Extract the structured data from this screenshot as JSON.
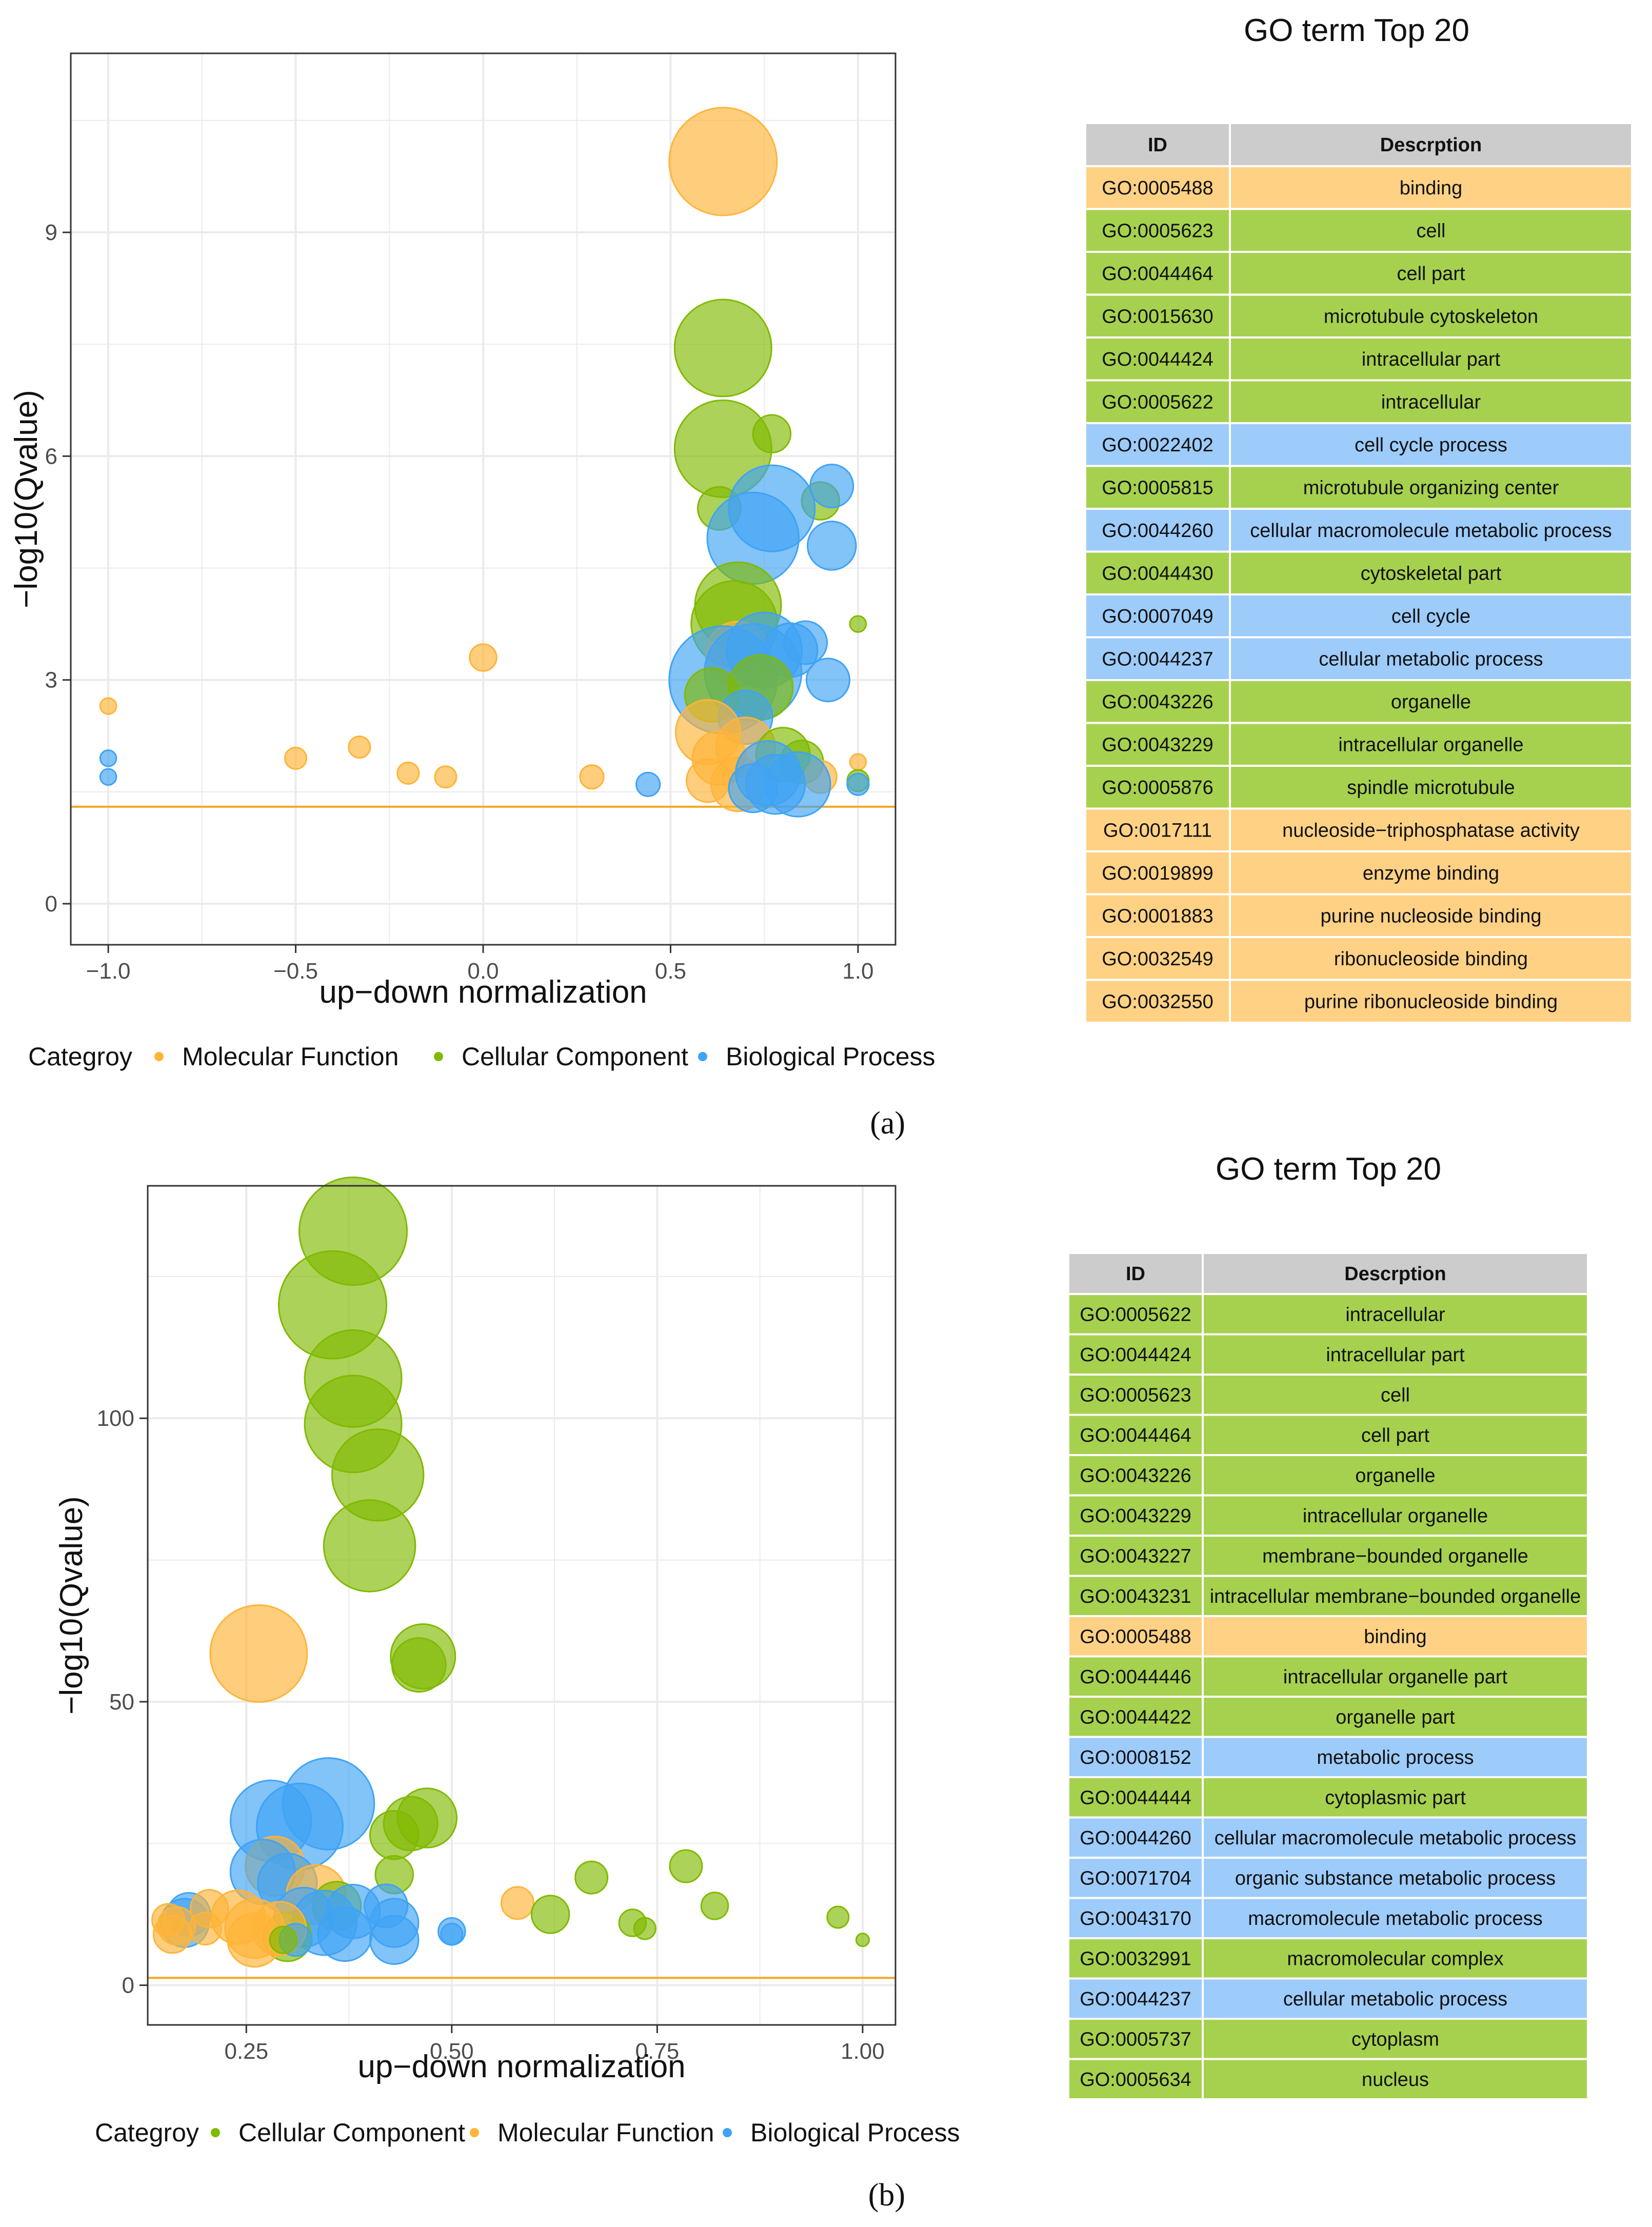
{
  "colors": {
    "Molecular Function": "#FFB438",
    "Cellular Component": "#80BA00",
    "Biological Process": "#3FA3F5",
    "threshold": "#F5A623",
    "grid": "#ebebeb",
    "header_bg": "#CCCCCC",
    "row_Molecular Function": "#FFD185",
    "row_Cellular Component": "#A6D14E",
    "row_Biological Process": "#9DCBFA"
  },
  "chart_data": [
    {
      "panel_label": "(a)",
      "type": "scatter",
      "xlabel": "up−down normalization",
      "ylabel": "−log10(Qvalue)",
      "xlim": [
        -1.1,
        1.1
      ],
      "ylim": [
        -0.55,
        11.4
      ],
      "xticks": [
        -1.0,
        -0.5,
        0.0,
        0.5,
        1.0
      ],
      "xtick_labels": [
        "−1.0",
        "−0.5",
        "0.0",
        "0.5",
        "1.0"
      ],
      "yticks": [
        0,
        3,
        6,
        9
      ],
      "ytick_labels": [
        "0",
        "3",
        "6",
        "9"
      ],
      "threshold": 1.3,
      "legend_title": "Categroy",
      "legend": [
        "Molecular Function",
        "Cellular Component",
        "Biological Process"
      ],
      "points": [
        {
          "x": 0.64,
          "y": 9.95,
          "s": 1.0,
          "c": "Molecular Function"
        },
        {
          "x": 0.64,
          "y": 7.45,
          "s": 0.9,
          "c": "Cellular Component"
        },
        {
          "x": 0.64,
          "y": 6.1,
          "s": 0.9,
          "c": "Cellular Component"
        },
        {
          "x": 0.77,
          "y": 6.3,
          "s": 0.35,
          "c": "Cellular Component"
        },
        {
          "x": 0.63,
          "y": 5.3,
          "s": 0.4,
          "c": "Cellular Component"
        },
        {
          "x": 0.9,
          "y": 5.4,
          "s": 0.35,
          "c": "Cellular Component"
        },
        {
          "x": 0.93,
          "y": 5.6,
          "s": 0.4,
          "c": "Biological Process"
        },
        {
          "x": 0.77,
          "y": 5.3,
          "s": 0.8,
          "c": "Biological Process"
        },
        {
          "x": 0.72,
          "y": 4.9,
          "s": 0.85,
          "c": "Biological Process"
        },
        {
          "x": 0.93,
          "y": 4.8,
          "s": 0.45,
          "c": "Biological Process"
        },
        {
          "x": 0.68,
          "y": 4.0,
          "s": 0.8,
          "c": "Cellular Component"
        },
        {
          "x": 0.67,
          "y": 3.75,
          "s": 0.8,
          "c": "Cellular Component"
        },
        {
          "x": 1.0,
          "y": 3.75,
          "s": 0.15,
          "c": "Cellular Component"
        },
        {
          "x": 0.0,
          "y": 3.3,
          "s": 0.25,
          "c": "Molecular Function"
        },
        {
          "x": 0.68,
          "y": 3.35,
          "s": 0.6,
          "c": "Molecular Function"
        },
        {
          "x": 0.75,
          "y": 3.4,
          "s": 0.7,
          "c": "Biological Process"
        },
        {
          "x": 0.82,
          "y": 3.4,
          "s": 0.5,
          "c": "Biological Process"
        },
        {
          "x": 0.86,
          "y": 3.5,
          "s": 0.4,
          "c": "Biological Process"
        },
        {
          "x": 0.72,
          "y": 3.1,
          "s": 0.9,
          "c": "Biological Process"
        },
        {
          "x": 0.64,
          "y": 3.0,
          "s": 1.0,
          "c": "Biological Process"
        },
        {
          "x": 0.92,
          "y": 3.0,
          "s": 0.4,
          "c": "Biological Process"
        },
        {
          "x": 0.61,
          "y": 2.8,
          "s": 0.5,
          "c": "Cellular Component"
        },
        {
          "x": 0.74,
          "y": 2.9,
          "s": 0.6,
          "c": "Cellular Component"
        },
        {
          "x": 0.7,
          "y": 2.5,
          "s": 0.5,
          "c": "Biological Process"
        },
        {
          "x": 0.6,
          "y": 2.3,
          "s": 0.6,
          "c": "Molecular Function"
        },
        {
          "x": 0.7,
          "y": 2.1,
          "s": 0.55,
          "c": "Molecular Function"
        },
        {
          "x": 0.63,
          "y": 1.95,
          "s": 0.5,
          "c": "Molecular Function"
        },
        {
          "x": 0.8,
          "y": 2.0,
          "s": 0.5,
          "c": "Cellular Component"
        },
        {
          "x": 0.85,
          "y": 1.9,
          "s": 0.4,
          "c": "Cellular Component"
        },
        {
          "x": 0.6,
          "y": 1.65,
          "s": 0.4,
          "c": "Molecular Function"
        },
        {
          "x": 0.68,
          "y": 1.6,
          "s": 0.5,
          "c": "Molecular Function"
        },
        {
          "x": 0.9,
          "y": 1.7,
          "s": 0.3,
          "c": "Molecular Function"
        },
        {
          "x": 1.0,
          "y": 1.9,
          "s": 0.15,
          "c": "Molecular Function"
        },
        {
          "x": 1.0,
          "y": 1.65,
          "s": 0.2,
          "c": "Cellular Component"
        },
        {
          "x": 0.76,
          "y": 1.75,
          "s": 0.6,
          "c": "Biological Process"
        },
        {
          "x": 0.84,
          "y": 1.6,
          "s": 0.6,
          "c": "Biological Process"
        },
        {
          "x": 0.72,
          "y": 1.55,
          "s": 0.45,
          "c": "Biological Process"
        },
        {
          "x": 0.78,
          "y": 1.6,
          "s": 0.55,
          "c": "Biological Process"
        },
        {
          "x": 1.0,
          "y": 1.6,
          "s": 0.2,
          "c": "Biological Process"
        },
        {
          "x": 0.44,
          "y": 1.6,
          "s": 0.22,
          "c": "Biological Process"
        },
        {
          "x": 0.29,
          "y": 1.7,
          "s": 0.22,
          "c": "Molecular Function"
        },
        {
          "x": -0.1,
          "y": 1.7,
          "s": 0.2,
          "c": "Molecular Function"
        },
        {
          "x": -0.2,
          "y": 1.75,
          "s": 0.2,
          "c": "Molecular Function"
        },
        {
          "x": -0.33,
          "y": 2.1,
          "s": 0.2,
          "c": "Molecular Function"
        },
        {
          "x": -0.5,
          "y": 1.95,
          "s": 0.2,
          "c": "Molecular Function"
        },
        {
          "x": -1.0,
          "y": 2.65,
          "s": 0.15,
          "c": "Molecular Function"
        },
        {
          "x": -1.0,
          "y": 1.95,
          "s": 0.15,
          "c": "Biological Process"
        },
        {
          "x": -1.0,
          "y": 1.7,
          "s": 0.15,
          "c": "Biological Process"
        }
      ]
    },
    {
      "panel_label": "(b)",
      "type": "scatter",
      "xlabel": "up−down normalization",
      "ylabel": "−log10(Qvalue)",
      "xlim": [
        0.13,
        1.04
      ],
      "ylim": [
        -7,
        141
      ],
      "xticks": [
        0.25,
        0.5,
        0.75,
        1.0
      ],
      "xtick_labels": [
        "0.25",
        "0.50",
        "0.75",
        "1.00"
      ],
      "yticks": [
        0,
        50,
        100
      ],
      "ytick_labels": [
        "0",
        "50",
        "100"
      ],
      "threshold": 1.3,
      "legend_title": "Categroy",
      "legend": [
        "Cellular Component",
        "Molecular Function",
        "Biological Process"
      ],
      "points": [
        {
          "x": 0.38,
          "y": 133,
          "s": 1.0,
          "c": "Cellular Component"
        },
        {
          "x": 0.355,
          "y": 120,
          "s": 1.0,
          "c": "Cellular Component"
        },
        {
          "x": 0.38,
          "y": 107,
          "s": 0.9,
          "c": "Cellular Component"
        },
        {
          "x": 0.38,
          "y": 99,
          "s": 0.9,
          "c": "Cellular Component"
        },
        {
          "x": 0.41,
          "y": 90,
          "s": 0.85,
          "c": "Cellular Component"
        },
        {
          "x": 0.4,
          "y": 77.5,
          "s": 0.85,
          "c": "Cellular Component"
        },
        {
          "x": 0.265,
          "y": 58.5,
          "s": 0.9,
          "c": "Molecular Function"
        },
        {
          "x": 0.465,
          "y": 58,
          "s": 0.6,
          "c": "Cellular Component"
        },
        {
          "x": 0.46,
          "y": 56.5,
          "s": 0.5,
          "c": "Cellular Component"
        },
        {
          "x": 0.35,
          "y": 32,
          "s": 0.85,
          "c": "Biological Process"
        },
        {
          "x": 0.28,
          "y": 29,
          "s": 0.75,
          "c": "Biological Process"
        },
        {
          "x": 0.315,
          "y": 28,
          "s": 0.8,
          "c": "Biological Process"
        },
        {
          "x": 0.47,
          "y": 29.5,
          "s": 0.55,
          "c": "Cellular Component"
        },
        {
          "x": 0.45,
          "y": 28.5,
          "s": 0.5,
          "c": "Cellular Component"
        },
        {
          "x": 0.43,
          "y": 26.5,
          "s": 0.45,
          "c": "Cellular Component"
        },
        {
          "x": 0.285,
          "y": 21,
          "s": 0.55,
          "c": "Molecular Function"
        },
        {
          "x": 0.27,
          "y": 20,
          "s": 0.6,
          "c": "Biological Process"
        },
        {
          "x": 0.3,
          "y": 18,
          "s": 0.55,
          "c": "Biological Process"
        },
        {
          "x": 0.43,
          "y": 19.5,
          "s": 0.35,
          "c": "Cellular Component"
        },
        {
          "x": 0.67,
          "y": 19,
          "s": 0.3,
          "c": "Cellular Component"
        },
        {
          "x": 0.785,
          "y": 21,
          "s": 0.3,
          "c": "Cellular Component"
        },
        {
          "x": 0.58,
          "y": 14.5,
          "s": 0.3,
          "c": "Molecular Function"
        },
        {
          "x": 0.82,
          "y": 14,
          "s": 0.25,
          "c": "Cellular Component"
        },
        {
          "x": 0.62,
          "y": 12.5,
          "s": 0.35,
          "c": "Cellular Component"
        },
        {
          "x": 0.72,
          "y": 11,
          "s": 0.25,
          "c": "Cellular Component"
        },
        {
          "x": 0.735,
          "y": 10,
          "s": 0.2,
          "c": "Cellular Component"
        },
        {
          "x": 0.97,
          "y": 12,
          "s": 0.2,
          "c": "Cellular Component"
        },
        {
          "x": 1.0,
          "y": 8,
          "s": 0.12,
          "c": "Cellular Component"
        },
        {
          "x": 0.5,
          "y": 9.5,
          "s": 0.25,
          "c": "Biological Process"
        },
        {
          "x": 0.5,
          "y": 9,
          "s": 0.2,
          "c": "Biological Process"
        },
        {
          "x": 0.335,
          "y": 16,
          "s": 0.55,
          "c": "Molecular Function"
        },
        {
          "x": 0.36,
          "y": 14,
          "s": 0.45,
          "c": "Cellular Component"
        },
        {
          "x": 0.38,
          "y": 13,
          "s": 0.5,
          "c": "Biological Process"
        },
        {
          "x": 0.32,
          "y": 12,
          "s": 0.55,
          "c": "Biological Process"
        },
        {
          "x": 0.345,
          "y": 11,
          "s": 0.6,
          "c": "Biological Process"
        },
        {
          "x": 0.42,
          "y": 14,
          "s": 0.4,
          "c": "Biological Process"
        },
        {
          "x": 0.43,
          "y": 11,
          "s": 0.45,
          "c": "Biological Process"
        },
        {
          "x": 0.43,
          "y": 8,
          "s": 0.45,
          "c": "Biological Process"
        },
        {
          "x": 0.37,
          "y": 9,
          "s": 0.5,
          "c": "Biological Process"
        },
        {
          "x": 0.3,
          "y": 8.5,
          "s": 0.45,
          "c": "Cellular Component"
        },
        {
          "x": 0.26,
          "y": 8,
          "s": 0.5,
          "c": "Molecular Function"
        },
        {
          "x": 0.26,
          "y": 10,
          "s": 0.55,
          "c": "Molecular Function"
        },
        {
          "x": 0.24,
          "y": 12,
          "s": 0.5,
          "c": "Molecular Function"
        },
        {
          "x": 0.29,
          "y": 10,
          "s": 0.5,
          "c": "Molecular Function"
        },
        {
          "x": 0.18,
          "y": 12.5,
          "s": 0.4,
          "c": "Biological Process"
        },
        {
          "x": 0.175,
          "y": 11,
          "s": 0.45,
          "c": "Biological Process"
        },
        {
          "x": 0.205,
          "y": 13.5,
          "s": 0.35,
          "c": "Molecular Function"
        },
        {
          "x": 0.2,
          "y": 10,
          "s": 0.3,
          "c": "Molecular Function"
        },
        {
          "x": 0.165,
          "y": 10.5,
          "s": 0.35,
          "c": "Molecular Function"
        },
        {
          "x": 0.155,
          "y": 11.5,
          "s": 0.3,
          "c": "Molecular Function"
        },
        {
          "x": 0.16,
          "y": 9,
          "s": 0.35,
          "c": "Molecular Function"
        },
        {
          "x": 0.31,
          "y": 8,
          "s": 0.3,
          "c": "Biological Process"
        },
        {
          "x": 0.295,
          "y": 8,
          "s": 0.25,
          "c": "Cellular Component"
        }
      ]
    }
  ],
  "tables": [
    {
      "title": "GO term Top 20",
      "headers": [
        "ID",
        "Descrption"
      ],
      "rows": [
        {
          "id": "GO:0005488",
          "desc": "binding",
          "cat": "Molecular Function"
        },
        {
          "id": "GO:0005623",
          "desc": "cell",
          "cat": "Cellular Component"
        },
        {
          "id": "GO:0044464",
          "desc": "cell part",
          "cat": "Cellular Component"
        },
        {
          "id": "GO:0015630",
          "desc": "microtubule cytoskeleton",
          "cat": "Cellular Component"
        },
        {
          "id": "GO:0044424",
          "desc": "intracellular part",
          "cat": "Cellular Component"
        },
        {
          "id": "GO:0005622",
          "desc": "intracellular",
          "cat": "Cellular Component"
        },
        {
          "id": "GO:0022402",
          "desc": "cell cycle process",
          "cat": "Biological Process"
        },
        {
          "id": "GO:0005815",
          "desc": "microtubule organizing center",
          "cat": "Cellular Component"
        },
        {
          "id": "GO:0044260",
          "desc": "cellular macromolecule metabolic process",
          "cat": "Biological Process"
        },
        {
          "id": "GO:0044430",
          "desc": "cytoskeletal part",
          "cat": "Cellular Component"
        },
        {
          "id": "GO:0007049",
          "desc": "cell cycle",
          "cat": "Biological Process"
        },
        {
          "id": "GO:0044237",
          "desc": "cellular metabolic process",
          "cat": "Biological Process"
        },
        {
          "id": "GO:0043226",
          "desc": "organelle",
          "cat": "Cellular Component"
        },
        {
          "id": "GO:0043229",
          "desc": "intracellular organelle",
          "cat": "Cellular Component"
        },
        {
          "id": "GO:0005876",
          "desc": "spindle microtubule",
          "cat": "Cellular Component"
        },
        {
          "id": "GO:0017111",
          "desc": "nucleoside−triphosphatase activity",
          "cat": "Molecular Function"
        },
        {
          "id": "GO:0019899",
          "desc": "enzyme binding",
          "cat": "Molecular Function"
        },
        {
          "id": "GO:0001883",
          "desc": "purine nucleoside binding",
          "cat": "Molecular Function"
        },
        {
          "id": "GO:0032549",
          "desc": "ribonucleoside binding",
          "cat": "Molecular Function"
        },
        {
          "id": "GO:0032550",
          "desc": "purine ribonucleoside binding",
          "cat": "Molecular Function"
        }
      ]
    },
    {
      "title": "GO term Top 20",
      "headers": [
        "ID",
        "Descrption"
      ],
      "rows": [
        {
          "id": "GO:0005622",
          "desc": "intracellular",
          "cat": "Cellular Component"
        },
        {
          "id": "GO:0044424",
          "desc": "intracellular part",
          "cat": "Cellular Component"
        },
        {
          "id": "GO:0005623",
          "desc": "cell",
          "cat": "Cellular Component"
        },
        {
          "id": "GO:0044464",
          "desc": "cell part",
          "cat": "Cellular Component"
        },
        {
          "id": "GO:0043226",
          "desc": "organelle",
          "cat": "Cellular Component"
        },
        {
          "id": "GO:0043229",
          "desc": "intracellular organelle",
          "cat": "Cellular Component"
        },
        {
          "id": "GO:0043227",
          "desc": "membrane−bounded organelle",
          "cat": "Cellular Component"
        },
        {
          "id": "GO:0043231",
          "desc": "intracellular membrane−bounded organelle",
          "cat": "Cellular Component"
        },
        {
          "id": "GO:0005488",
          "desc": "binding",
          "cat": "Molecular Function"
        },
        {
          "id": "GO:0044446",
          "desc": "intracellular organelle part",
          "cat": "Cellular Component"
        },
        {
          "id": "GO:0044422",
          "desc": "organelle part",
          "cat": "Cellular Component"
        },
        {
          "id": "GO:0008152",
          "desc": "metabolic process",
          "cat": "Biological Process"
        },
        {
          "id": "GO:0044444",
          "desc": "cytoplasmic part",
          "cat": "Cellular Component"
        },
        {
          "id": "GO:0044260",
          "desc": "cellular macromolecule metabolic process",
          "cat": "Biological Process"
        },
        {
          "id": "GO:0071704",
          "desc": "organic substance metabolic process",
          "cat": "Biological Process"
        },
        {
          "id": "GO:0043170",
          "desc": "macromolecule metabolic process",
          "cat": "Biological Process"
        },
        {
          "id": "GO:0032991",
          "desc": "macromolecular complex",
          "cat": "Cellular Component"
        },
        {
          "id": "GO:0044237",
          "desc": "cellular metabolic process",
          "cat": "Biological Process"
        },
        {
          "id": "GO:0005737",
          "desc": "cytoplasm",
          "cat": "Cellular Component"
        },
        {
          "id": "GO:0005634",
          "desc": "nucleus",
          "cat": "Cellular Component"
        }
      ]
    }
  ]
}
